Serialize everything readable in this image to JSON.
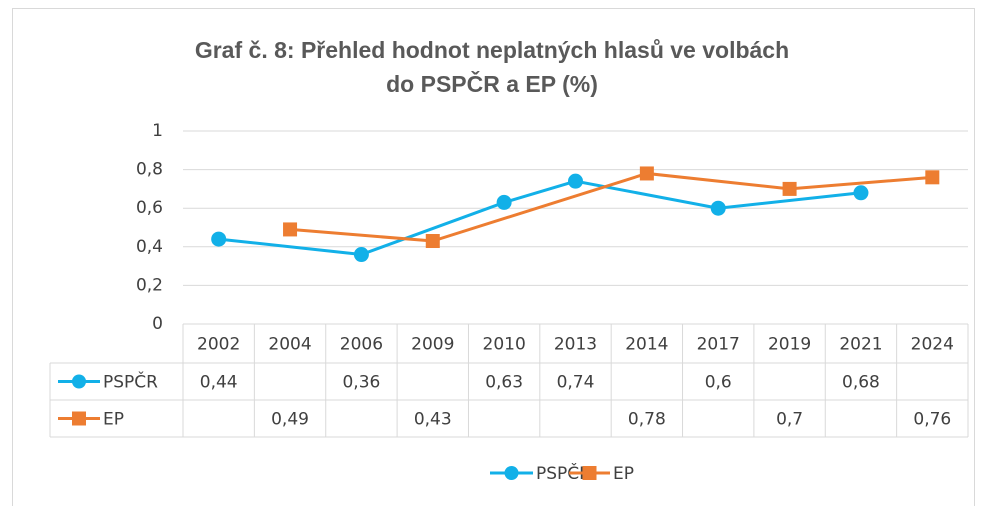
{
  "chart_data": {
    "type": "line",
    "title": "Graf č. 8: Přehled hodnot neplatných hlasů ve volbách do PSPČR a EP (%)",
    "categories": [
      "2002",
      "2004",
      "2006",
      "2009",
      "2010",
      "2013",
      "2014",
      "2017",
      "2019",
      "2021",
      "2024"
    ],
    "series": [
      {
        "name": "PSPČR",
        "color": "#12b0e8",
        "marker": "circle",
        "x": [
          "2002",
          "2006",
          "2010",
          "2013",
          "2017",
          "2021"
        ],
        "values": [
          0.44,
          0.36,
          0.63,
          0.74,
          0.6,
          0.68
        ],
        "value_labels": [
          "0,44",
          "0,36",
          "0,63",
          "0,74",
          "0,6",
          "0,68"
        ]
      },
      {
        "name": "EP",
        "color": "#ed7d31",
        "marker": "square",
        "x": [
          "2004",
          "2009",
          "2014",
          "2019",
          "2024"
        ],
        "values": [
          0.49,
          0.43,
          0.78,
          0.7,
          0.76
        ],
        "value_labels": [
          "0,49",
          "0,43",
          "0,78",
          "0,7",
          "0,76"
        ]
      }
    ],
    "ylim": [
      0,
      1
    ],
    "yticks": [
      0,
      {
        "value": 0.2,
        "label": "0,2"
      },
      {
        "value": 0.4,
        "label": "0,4"
      },
      {
        "value": 0.6,
        "label": "0,6"
      },
      {
        "value": 0.8,
        "label": "0,8"
      },
      1
    ],
    "grid": true,
    "data_table": true,
    "legend": "bottom"
  }
}
